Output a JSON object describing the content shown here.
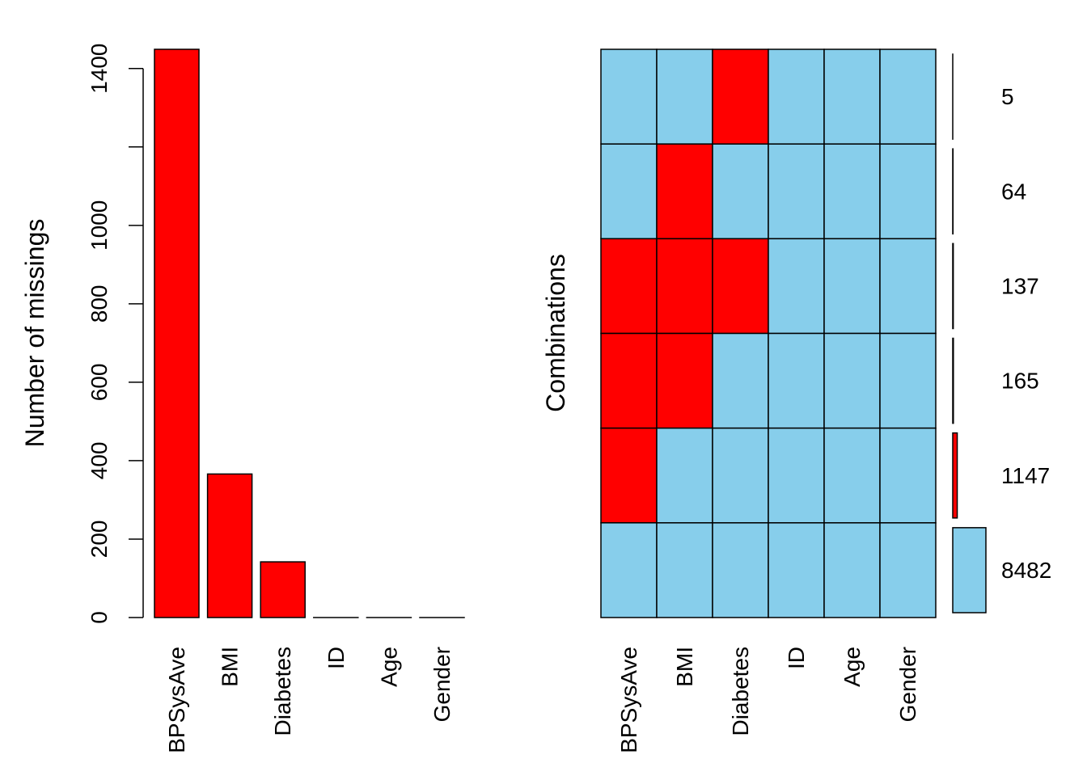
{
  "colors": {
    "missing": "#FF0000",
    "observed": "#87CEEB",
    "border": "#000000",
    "background": "#FFFFFF"
  },
  "chart_data": [
    {
      "type": "bar",
      "title": "",
      "xlabel": "",
      "ylabel": "Number of missings",
      "categories": [
        "BPSysAve",
        "BMI",
        "Diabetes",
        "ID",
        "Age",
        "Gender"
      ],
      "values": [
        1449,
        366,
        142,
        0,
        0,
        0
      ],
      "ylim": [
        0,
        1449
      ],
      "yticks": [
        0,
        200,
        400,
        600,
        800,
        1000,
        1200,
        1400
      ],
      "ytick_labels": [
        "0",
        "200",
        "400",
        "600",
        "800",
        "1000",
        "",
        "1400"
      ],
      "grid": false,
      "legend": "none"
    },
    {
      "type": "heatmap",
      "title": "",
      "ylabel": "Combinations",
      "variables": [
        "BPSysAve",
        "BMI",
        "Diabetes",
        "ID",
        "Age",
        "Gender"
      ],
      "combinations": [
        {
          "pattern": [
            0,
            0,
            1,
            0,
            0,
            0
          ],
          "count": 5,
          "label": "5"
        },
        {
          "pattern": [
            0,
            1,
            0,
            0,
            0,
            0
          ],
          "count": 64,
          "label": "64"
        },
        {
          "pattern": [
            1,
            1,
            1,
            0,
            0,
            0
          ],
          "count": 137,
          "label": "137"
        },
        {
          "pattern": [
            1,
            1,
            0,
            0,
            0,
            0
          ],
          "count": 165,
          "label": "165"
        },
        {
          "pattern": [
            1,
            0,
            0,
            0,
            0,
            0
          ],
          "count": 1147,
          "label": "1147"
        },
        {
          "pattern": [
            0,
            0,
            0,
            0,
            0,
            0
          ],
          "count": 8482,
          "label": "8482"
        }
      ],
      "count_bar_max": 8482,
      "grid": false,
      "legend": "none"
    }
  ]
}
